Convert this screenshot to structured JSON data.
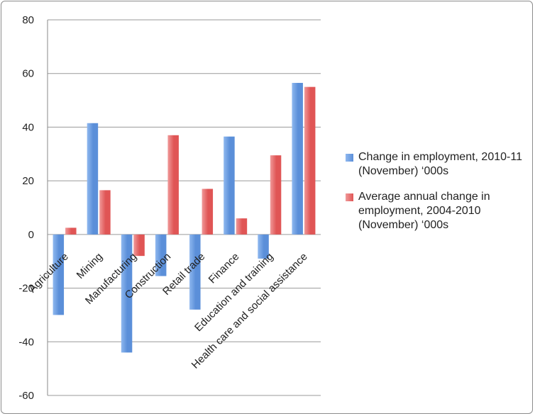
{
  "chart_data": {
    "type": "bar",
    "categories": [
      "Agriculture",
      "Mining",
      "Manufacturing",
      "Construction",
      "Retail trade",
      "Finance",
      "Education and training",
      "Health care and social assistance"
    ],
    "series": [
      {
        "name": "Change in employment, 2010-11 (November) ‘000s",
        "values": [
          -30,
          41.5,
          -44,
          -15.5,
          -28,
          36.5,
          -9,
          56.5
        ],
        "color": "#5b8fd9"
      },
      {
        "name": "Average annual change in employment, 2004-2010 (November) ‘000s",
        "values": [
          2.5,
          16.5,
          -8,
          37,
          17,
          6,
          29.5,
          55
        ],
        "color": "#e05555"
      }
    ],
    "yticks": [
      "80",
      "60",
      "40",
      "20",
      "0",
      "-20",
      "-40",
      "-60"
    ],
    "ylim": [
      -60,
      80
    ],
    "grid": true,
    "legend_position": "right"
  }
}
